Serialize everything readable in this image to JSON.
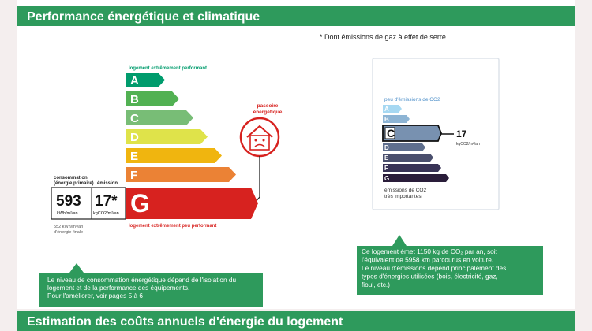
{
  "header": {
    "title": "Performance énergétique et climatique"
  },
  "note": "* Dont émissions de gaz à effet de serre.",
  "energy_label": {
    "top_label": "logement extrêmement performant",
    "bottom_label": "logement extrêmement peu performant",
    "classes": [
      "A",
      "B",
      "C",
      "D",
      "E",
      "F",
      "G"
    ],
    "colors": [
      "#009c6d",
      "#52b153",
      "#78bd76",
      "#dfe34a",
      "#f0b50f",
      "#eb8235",
      "#d7221f"
    ],
    "consumption_caption": [
      "consommation",
      "(énergie primaire)"
    ],
    "emission_caption": "émission",
    "consumption_value": "593",
    "consumption_unit": "kWh/m²/an",
    "emission_value": "17*",
    "emission_unit": "kgCO2/m²/an",
    "final_energy": [
      "552 kWh/m²/an",
      "d'énergie finale"
    ],
    "passoire_label": [
      "passoire",
      "énergétique"
    ]
  },
  "co2_label": {
    "top_label": "peu d'émissions de CO2",
    "classes": [
      "A",
      "B",
      "C",
      "D",
      "E",
      "F",
      "G"
    ],
    "colors": [
      "#a6d8f2",
      "#8db4d4",
      "#7891b0",
      "#5f6f8e",
      "#4a4f6d",
      "#383356",
      "#2a1d3a"
    ],
    "value": "17",
    "unit": "kgCO2/m²/an",
    "bottom_label": [
      "émissions de CO2",
      "très importantes"
    ]
  },
  "callouts": [
    {
      "lines": [
        "Le niveau de consommation énergétique dépend de l'isolation du",
        "logement et de la performance des équipements.",
        "Pour l'améliorer, voir pages 5 à 6"
      ]
    },
    {
      "lines": [
        "Ce logement émet 1150  kg de CO₂ par an, soit",
        "l'équivalent de 5958 km parcourus en voiture.",
        "Le niveau d'émissions dépend principalement des",
        "types d'énergies utilisées (bois, électricité, gaz,",
        "fioul, etc.)"
      ]
    }
  ],
  "footer": {
    "title": "Estimation des coûts annuels d'énergie du logement"
  }
}
